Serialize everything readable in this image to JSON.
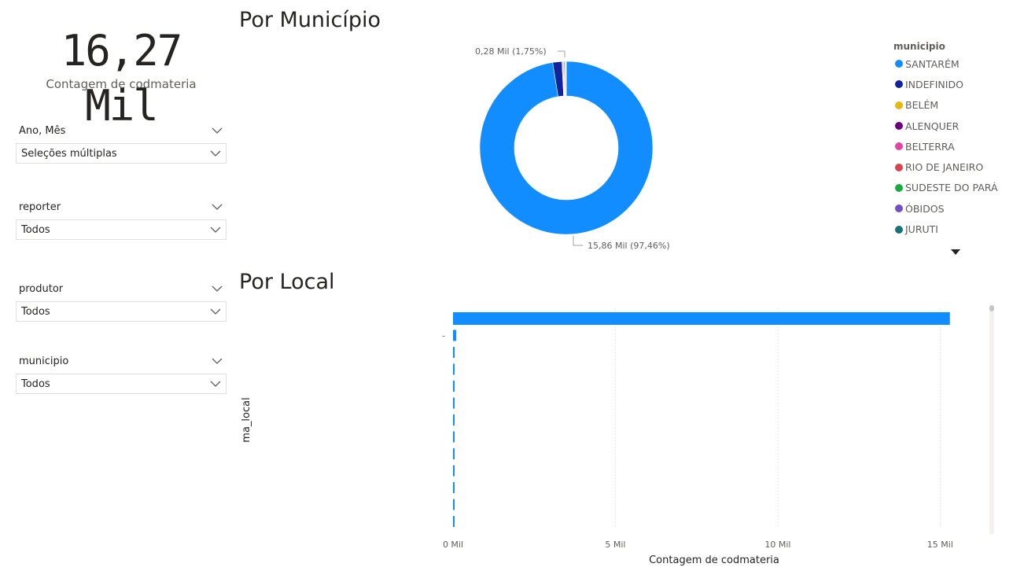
{
  "kpi": {
    "value": "16,27 Mil",
    "label": "Contagem de codmateria"
  },
  "slicers": [
    {
      "title": "Ano, Mês",
      "value": "Seleções múltiplas"
    },
    {
      "title": "reporter",
      "value": "Todos"
    },
    {
      "title": "produtor",
      "value": "Todos"
    },
    {
      "title": "municipio",
      "value": "Todos"
    }
  ],
  "donut": {
    "title": "Por Município",
    "legend_title": "municipio",
    "label_small": "0,28 Mil (1,75%)",
    "label_large": "15,86 Mil (97,46%)"
  },
  "bars": {
    "title": "Por Local"
  },
  "chart_data": [
    {
      "type": "pie",
      "title": "Por Município",
      "legend": "municipio",
      "legend_position": "right",
      "categories": [
        "SANTARÉM",
        "INDEFINIDO",
        "BELÉM",
        "ALENQUER",
        "BELTERRA",
        "RIO DE JANEIRO",
        "SUDESTE DO PARÁ",
        "ÓBIDOS",
        "JURUTI"
      ],
      "values": [
        15.86,
        0.28,
        0.02,
        0.02,
        0.02,
        0.03,
        0.02,
        0.01,
        0.01
      ],
      "colors": [
        "#118dff",
        "#12239e",
        "#e6b711",
        "#6b007b",
        "#e044a7",
        "#d64550",
        "#1aab40",
        "#744ec2",
        "#197278"
      ],
      "unit": "Mil"
    },
    {
      "type": "bar",
      "orientation": "horizontal",
      "title": "Por Local",
      "xlabel": "Contagem de codmateria",
      "ylabel": "ma_local",
      "categories": [
        "",
        "-",
        "",
        "",
        "",
        "",
        "",
        "",
        "",
        "",
        "",
        "",
        ""
      ],
      "values": [
        15.3,
        0.1,
        0.05,
        0.05,
        0.05,
        0.04,
        0.04,
        0.04,
        0.03,
        0.03,
        0.03,
        0.03,
        0.02
      ],
      "xlim": [
        0,
        15.5
      ],
      "xticks": [
        0,
        5,
        10,
        15
      ],
      "tick_labels": [
        "0 Mil",
        "5 Mil",
        "10 Mil",
        "15 Mil"
      ],
      "grid": true,
      "color": "#118dff"
    }
  ]
}
